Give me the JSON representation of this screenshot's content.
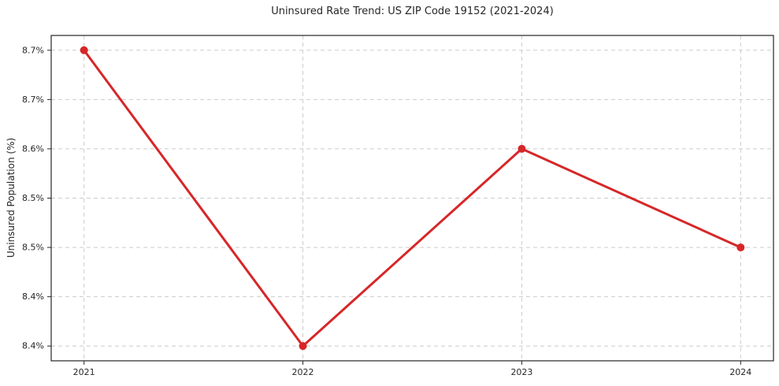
{
  "figure": {
    "background": "#ffffff",
    "text_color": "#262626",
    "spine_color": "#262626"
  },
  "chart_data": {
    "type": "line",
    "title": "Uninsured Rate Trend: US ZIP Code 19152 (2021-2024)",
    "xlabel": "",
    "ylabel": "Uninsured Population (%)",
    "categories": [
      "2021",
      "2022",
      "2023",
      "2024"
    ],
    "x": [
      2021,
      2022,
      2023,
      2024
    ],
    "values": [
      8.7,
      8.4,
      8.6,
      8.5
    ],
    "value_labels": [
      "8.7%",
      "8.4%",
      "8.6%",
      "8.5%"
    ],
    "line_color": "#d62728",
    "marker": "circle",
    "grid": true,
    "grid_style": "dashed",
    "grid_color": "#cccccc",
    "legend": false,
    "xlim": [
      2020.85,
      2024.15
    ],
    "ylim": [
      8.385,
      8.715
    ],
    "xticks": [
      2021,
      2022,
      2023,
      2024
    ],
    "xtick_labels": [
      "2021",
      "2022",
      "2023",
      "2024"
    ],
    "yticks": [
      8.4,
      8.45,
      8.5,
      8.55,
      8.6,
      8.65,
      8.7
    ],
    "ytick_labels": [
      "8.4%",
      "8.4%",
      "8.5%",
      "8.5%",
      "8.6%",
      "8.7%",
      "8.7%"
    ]
  }
}
